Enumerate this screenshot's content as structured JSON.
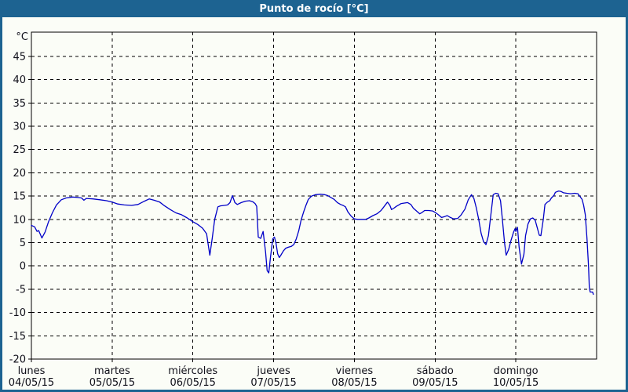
{
  "window": {
    "title": "Punto de rocío [°C]",
    "titlebar_color": "#1d6391",
    "background_color": "#fbfdf7"
  },
  "chart_data": {
    "type": "line",
    "title": "Punto de rocío [°C]",
    "y_unit_label": "°C",
    "ylabel": "",
    "xlabel": "",
    "grid": "dashed",
    "legend": "none",
    "y_axis_min": -20,
    "y_axis_max": 50.2,
    "y_tick_step": 5,
    "y_ticks": [
      45,
      40,
      35,
      30,
      25,
      20,
      15,
      10,
      5,
      0,
      -5,
      -10,
      -15,
      -20
    ],
    "x_span_days": 7,
    "x_ticks": [
      {
        "day": "lunes",
        "date": "04/05/15"
      },
      {
        "day": "martes",
        "date": "05/05/15"
      },
      {
        "day": "miércoles",
        "date": "06/05/15"
      },
      {
        "day": "jueves",
        "date": "07/05/15"
      },
      {
        "day": "viernes",
        "date": "08/05/15"
      },
      {
        "day": "sábado",
        "date": "09/05/15"
      },
      {
        "day": "domingo",
        "date": "10/05/15"
      }
    ],
    "line_color": "#0000c8",
    "series": [
      {
        "name": "Punto de rocío",
        "units": "°C",
        "points": [
          [
            0.0,
            8.7
          ],
          [
            0.04,
            8.4
          ],
          [
            0.07,
            7.4
          ],
          [
            0.09,
            7.6
          ],
          [
            0.13,
            6.0
          ],
          [
            0.17,
            7.3
          ],
          [
            0.21,
            9.4
          ],
          [
            0.26,
            11.4
          ],
          [
            0.31,
            13.1
          ],
          [
            0.37,
            14.2
          ],
          [
            0.43,
            14.6
          ],
          [
            0.51,
            14.8
          ],
          [
            0.58,
            14.7
          ],
          [
            0.62,
            14.6
          ],
          [
            0.65,
            14.1
          ],
          [
            0.68,
            14.5
          ],
          [
            0.76,
            14.4
          ],
          [
            0.85,
            14.2
          ],
          [
            0.93,
            14.0
          ],
          [
            1.0,
            13.7
          ],
          [
            1.07,
            13.3
          ],
          [
            1.15,
            13.1
          ],
          [
            1.24,
            13.0
          ],
          [
            1.32,
            13.2
          ],
          [
            1.4,
            13.9
          ],
          [
            1.46,
            14.4
          ],
          [
            1.52,
            14.1
          ],
          [
            1.59,
            13.7
          ],
          [
            1.65,
            12.9
          ],
          [
            1.72,
            12.1
          ],
          [
            1.79,
            11.4
          ],
          [
            1.86,
            11.0
          ],
          [
            1.93,
            10.3
          ],
          [
            2.0,
            9.5
          ],
          [
            2.06,
            8.9
          ],
          [
            2.12,
            8.1
          ],
          [
            2.17,
            6.9
          ],
          [
            2.19,
            4.5
          ],
          [
            2.21,
            2.3
          ],
          [
            2.24,
            6.0
          ],
          [
            2.27,
            10.0
          ],
          [
            2.31,
            12.7
          ],
          [
            2.34,
            12.9
          ],
          [
            2.39,
            13.0
          ],
          [
            2.43,
            13.1
          ],
          [
            2.46,
            13.6
          ],
          [
            2.49,
            15.1
          ],
          [
            2.52,
            13.6
          ],
          [
            2.55,
            13.2
          ],
          [
            2.6,
            13.6
          ],
          [
            2.65,
            13.9
          ],
          [
            2.7,
            14.0
          ],
          [
            2.74,
            13.8
          ],
          [
            2.77,
            13.4
          ],
          [
            2.79,
            12.8
          ],
          [
            2.81,
            6.2
          ],
          [
            2.84,
            5.9
          ],
          [
            2.87,
            7.4
          ],
          [
            2.9,
            3.0
          ],
          [
            2.92,
            -1.0
          ],
          [
            2.94,
            -1.5
          ],
          [
            2.96,
            1.8
          ],
          [
            2.99,
            5.8
          ],
          [
            3.01,
            6.2
          ],
          [
            3.03,
            4.8
          ],
          [
            3.05,
            2.6
          ],
          [
            3.07,
            1.8
          ],
          [
            3.09,
            2.3
          ],
          [
            3.12,
            3.2
          ],
          [
            3.15,
            3.8
          ],
          [
            3.18,
            4.0
          ],
          [
            3.22,
            4.2
          ],
          [
            3.25,
            4.6
          ],
          [
            3.28,
            5.8
          ],
          [
            3.31,
            7.5
          ],
          [
            3.34,
            9.8
          ],
          [
            3.37,
            11.5
          ],
          [
            3.4,
            13.0
          ],
          [
            3.43,
            14.3
          ],
          [
            3.47,
            15.0
          ],
          [
            3.52,
            15.3
          ],
          [
            3.58,
            15.4
          ],
          [
            3.63,
            15.3
          ],
          [
            3.67,
            15.1
          ],
          [
            3.71,
            14.7
          ],
          [
            3.75,
            14.3
          ],
          [
            3.79,
            13.6
          ],
          [
            3.83,
            13.2
          ],
          [
            3.86,
            13.0
          ],
          [
            3.89,
            12.7
          ],
          [
            3.92,
            11.6
          ],
          [
            3.96,
            10.7
          ],
          [
            4.0,
            10.1
          ],
          [
            4.04,
            10.0
          ],
          [
            4.09,
            10.0
          ],
          [
            4.14,
            10.0
          ],
          [
            4.18,
            10.3
          ],
          [
            4.23,
            10.8
          ],
          [
            4.28,
            11.2
          ],
          [
            4.33,
            11.9
          ],
          [
            4.37,
            12.8
          ],
          [
            4.41,
            13.7
          ],
          [
            4.44,
            13.0
          ],
          [
            4.46,
            12.1
          ],
          [
            4.49,
            12.4
          ],
          [
            4.52,
            12.8
          ],
          [
            4.55,
            13.1
          ],
          [
            4.58,
            13.4
          ],
          [
            4.62,
            13.5
          ],
          [
            4.66,
            13.6
          ],
          [
            4.7,
            13.2
          ],
          [
            4.73,
            12.4
          ],
          [
            4.77,
            11.8
          ],
          [
            4.81,
            11.2
          ],
          [
            4.84,
            11.5
          ],
          [
            4.87,
            11.9
          ],
          [
            4.92,
            11.9
          ],
          [
            4.97,
            11.8
          ],
          [
            5.0,
            11.5
          ],
          [
            5.04,
            11.0
          ],
          [
            5.08,
            10.4
          ],
          [
            5.12,
            10.6
          ],
          [
            5.15,
            10.8
          ],
          [
            5.19,
            10.4
          ],
          [
            5.23,
            10.1
          ],
          [
            5.28,
            10.2
          ],
          [
            5.32,
            10.9
          ],
          [
            5.37,
            12.2
          ],
          [
            5.41,
            14.2
          ],
          [
            5.45,
            15.3
          ],
          [
            5.48,
            14.5
          ],
          [
            5.51,
            12.5
          ],
          [
            5.54,
            10.0
          ],
          [
            5.57,
            7.0
          ],
          [
            5.6,
            5.2
          ],
          [
            5.63,
            4.6
          ],
          [
            5.66,
            6.5
          ],
          [
            5.69,
            11.0
          ],
          [
            5.72,
            15.3
          ],
          [
            5.75,
            15.6
          ],
          [
            5.78,
            15.5
          ],
          [
            5.81,
            14.0
          ],
          [
            5.83,
            10.5
          ],
          [
            5.86,
            5.0
          ],
          [
            5.88,
            2.3
          ],
          [
            5.91,
            3.5
          ],
          [
            5.94,
            5.5
          ],
          [
            5.97,
            7.2
          ],
          [
            5.99,
            8.0
          ],
          [
            6.0,
            7.4
          ],
          [
            6.02,
            8.3
          ],
          [
            6.04,
            4.0
          ],
          [
            6.07,
            0.4
          ],
          [
            6.1,
            2.5
          ],
          [
            6.12,
            6.5
          ],
          [
            6.15,
            9.0
          ],
          [
            6.18,
            10.1
          ],
          [
            6.21,
            10.3
          ],
          [
            6.24,
            9.8
          ],
          [
            6.26,
            8.5
          ],
          [
            6.29,
            6.6
          ],
          [
            6.31,
            6.5
          ],
          [
            6.34,
            10.0
          ],
          [
            6.36,
            13.2
          ],
          [
            6.39,
            13.7
          ],
          [
            6.42,
            14.0
          ],
          [
            6.44,
            14.6
          ],
          [
            6.47,
            15.1
          ],
          [
            6.49,
            15.8
          ],
          [
            6.53,
            16.1
          ],
          [
            6.56,
            16.0
          ],
          [
            6.59,
            15.7
          ],
          [
            6.63,
            15.6
          ],
          [
            6.68,
            15.5
          ],
          [
            6.73,
            15.6
          ],
          [
            6.77,
            15.5
          ],
          [
            6.79,
            15.0
          ],
          [
            6.82,
            14.3
          ],
          [
            6.84,
            13.0
          ],
          [
            6.86,
            11.0
          ],
          [
            6.88,
            6.0
          ],
          [
            6.9,
            0.0
          ],
          [
            6.91,
            -4.5
          ],
          [
            6.92,
            -5.6
          ],
          [
            6.95,
            -5.6
          ],
          [
            6.96,
            -6.1
          ]
        ]
      }
    ]
  }
}
